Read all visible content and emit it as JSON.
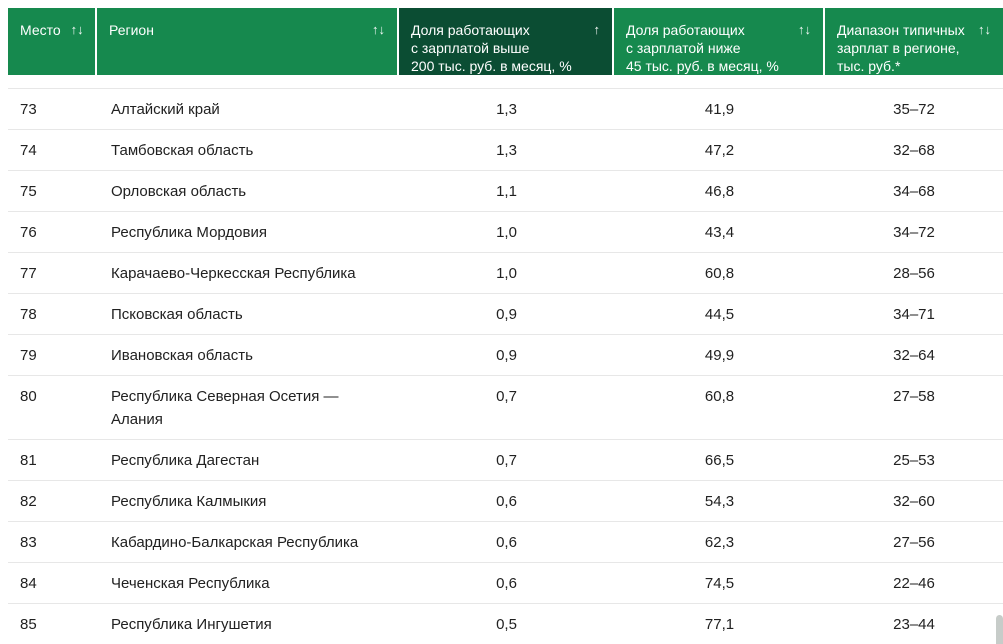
{
  "colors": {
    "header_bg": "#16894E",
    "header_highlight_bg": "#0B4D33",
    "header_text": "#ffffff",
    "row_border": "#e7e7e7",
    "text": "#212121"
  },
  "table": {
    "columns": [
      {
        "key": "place",
        "label": "Место",
        "sort_glyph": "↑↓"
      },
      {
        "key": "region",
        "label": "Регион",
        "sort_glyph": "↑↓"
      },
      {
        "key": "above200",
        "label": "Доля работающих\nс зарплатой выше\n200 тыс. руб. в месяц, %",
        "sort_glyph": "↑",
        "highlighted": true
      },
      {
        "key": "below45",
        "label": "Доля работающих\nс зарплатой ниже\n45 тыс. руб. в месяц, %",
        "sort_glyph": "↑↓"
      },
      {
        "key": "range",
        "label": "Диапазон типичных\nзарплат в регионе,\nтыс. руб.*",
        "sort_glyph": "↑↓"
      }
    ],
    "rows": [
      {
        "place": "73",
        "region": "Алтайский край",
        "above200": "1,3",
        "below45": "41,9",
        "range": "35–72"
      },
      {
        "place": "74",
        "region": "Тамбовская область",
        "above200": "1,3",
        "below45": "47,2",
        "range": "32–68"
      },
      {
        "place": "75",
        "region": "Орловская область",
        "above200": "1,1",
        "below45": "46,8",
        "range": "34–68"
      },
      {
        "place": "76",
        "region": "Республика Мордовия",
        "above200": "1,0",
        "below45": "43,4",
        "range": "34–72"
      },
      {
        "place": "77",
        "region": "Карачаево-Черкесская Республика",
        "above200": "1,0",
        "below45": "60,8",
        "range": "28–56"
      },
      {
        "place": "78",
        "region": "Псковская область",
        "above200": "0,9",
        "below45": "44,5",
        "range": "34–71"
      },
      {
        "place": "79",
        "region": "Ивановская область",
        "above200": "0,9",
        "below45": "49,9",
        "range": "32–64"
      },
      {
        "place": "80",
        "region": "Республика Северная Осетия —\nАлания",
        "above200": "0,7",
        "below45": "60,8",
        "range": "27–58"
      },
      {
        "place": "81",
        "region": "Республика Дагестан",
        "above200": "0,7",
        "below45": "66,5",
        "range": "25–53"
      },
      {
        "place": "82",
        "region": "Республика Калмыкия",
        "above200": "0,6",
        "below45": "54,3",
        "range": "32–60"
      },
      {
        "place": "83",
        "region": "Кабардино-Балкарская Республика",
        "above200": "0,6",
        "below45": "62,3",
        "range": "27–56"
      },
      {
        "place": "84",
        "region": "Чеченская Республика",
        "above200": "0,6",
        "below45": "74,5",
        "range": "22–46"
      },
      {
        "place": "85",
        "region": "Республика Ингушетия",
        "above200": "0,5",
        "below45": "77,1",
        "range": "23–44"
      }
    ]
  }
}
